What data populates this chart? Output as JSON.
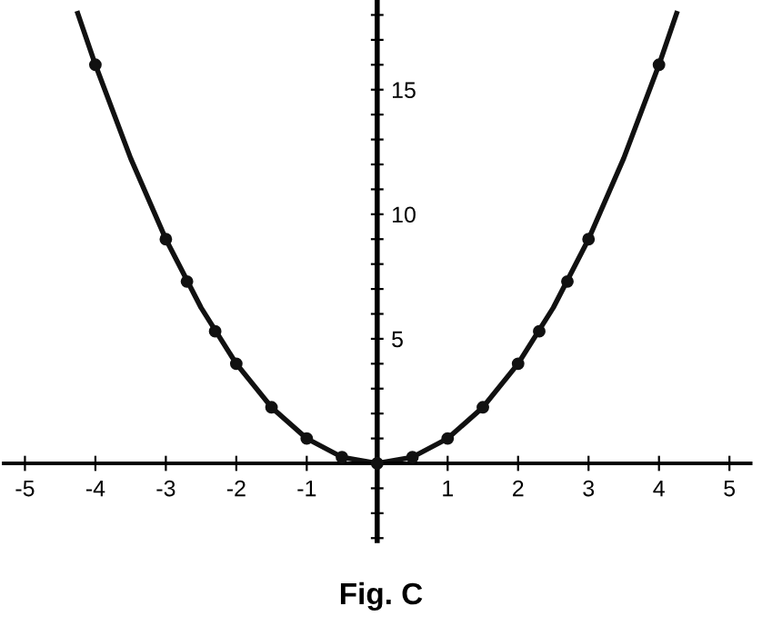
{
  "chart_data": {
    "type": "line",
    "annotations": [
      "Fig. C"
    ],
    "xlim": [
      -5.3,
      5.3
    ],
    "ylim": [
      -3.1,
      18.6
    ],
    "xticks": [
      {
        "value": -5,
        "label": "-5"
      },
      {
        "value": -4,
        "label": "-4"
      },
      {
        "value": -3,
        "label": "-3"
      },
      {
        "value": -2,
        "label": "-2"
      },
      {
        "value": -1,
        "label": "-1"
      },
      1,
      2,
      3,
      4,
      5
    ],
    "yticks": [
      {
        "value": -3,
        "label": null
      },
      {
        "value": -2,
        "label": null
      },
      {
        "value": -1,
        "label": null
      },
      {
        "value": 1,
        "label": null
      },
      {
        "value": 2,
        "label": null
      },
      {
        "value": 3,
        "label": null
      },
      {
        "value": 4,
        "label": null
      },
      5,
      {
        "value": 6,
        "label": null
      },
      {
        "value": 7,
        "label": null
      },
      {
        "value": 8,
        "label": null
      },
      {
        "value": 9,
        "label": null
      },
      10,
      {
        "value": 11,
        "label": null
      },
      {
        "value": 12,
        "label": null
      },
      {
        "value": 13,
        "label": null
      },
      {
        "value": 14,
        "label": null
      },
      15,
      {
        "value": 16,
        "label": null
      },
      {
        "value": 17,
        "label": null
      },
      {
        "value": 18,
        "label": null
      }
    ],
    "series": [
      {
        "color": "#111111",
        "marker": "none",
        "x": [
          -4.25,
          -4,
          -3.5,
          -3,
          -2.5,
          -2,
          -1.5,
          -1,
          -0.5,
          0,
          0.5,
          1,
          1.5,
          2,
          2.5,
          3,
          3.5,
          4,
          4.25
        ],
        "values": [
          18.06,
          16,
          12.25,
          9,
          6.25,
          4,
          2.25,
          1,
          0.25,
          0,
          0.25,
          1,
          2.25,
          4,
          6.25,
          9,
          12.25,
          16,
          18.06
        ]
      },
      {
        "type": "scatter",
        "color": "#111111",
        "marker": "circle",
        "x": [
          -4,
          -3,
          -2.7,
          -2.3,
          -2,
          -1.5,
          -1,
          -0.5,
          0,
          0.5,
          1,
          1.5,
          2,
          2.3,
          2.7,
          3,
          4
        ],
        "values": [
          16,
          9,
          7.3,
          5.3,
          4,
          2.25,
          1,
          0.25,
          0,
          0.25,
          1,
          2.25,
          4,
          5.3,
          7.3,
          9,
          16
        ]
      }
    ]
  }
}
